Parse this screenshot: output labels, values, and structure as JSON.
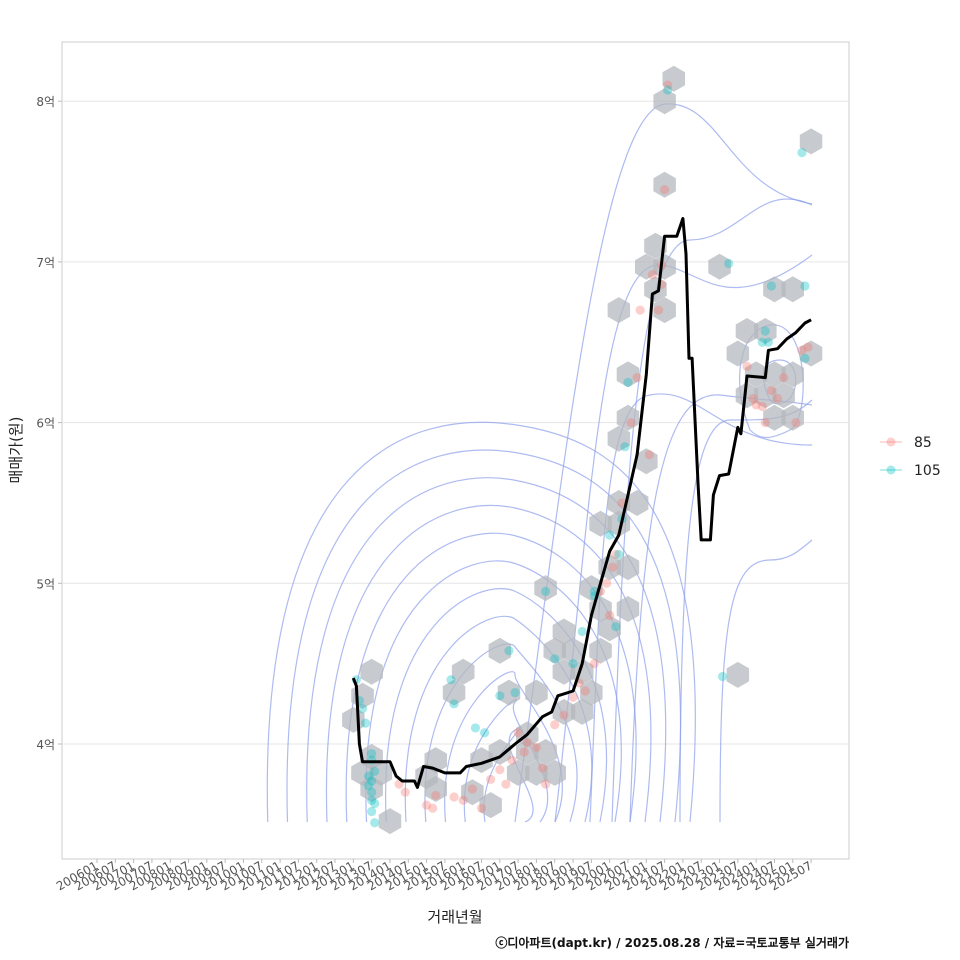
{
  "chart_data": {
    "type": "line",
    "title": "",
    "xlabel": "거래년월",
    "ylabel": "매매가(원)",
    "caption": "ⓒ디아파트(dapt.kr) / 2025.08.28 / 자료=국토교통부 실거래가",
    "x_ticks": [
      "200601",
      "200607",
      "200701",
      "200707",
      "200801",
      "200807",
      "200901",
      "200907",
      "201001",
      "201007",
      "201101",
      "201107",
      "201201",
      "201207",
      "201301",
      "201307",
      "201401",
      "201407",
      "201501",
      "201507",
      "201601",
      "201607",
      "201701",
      "201707",
      "201801",
      "201807",
      "201901",
      "201907",
      "202001",
      "202007",
      "202101",
      "202107",
      "202201",
      "202207",
      "202301",
      "202307",
      "202401",
      "202407",
      "202501",
      "202507"
    ],
    "y_ticks": [
      {
        "value": 4,
        "label": "4억"
      },
      {
        "value": 5,
        "label": "5억"
      },
      {
        "value": 6,
        "label": "6억"
      },
      {
        "value": 7,
        "label": "7억"
      },
      {
        "value": 8,
        "label": "8억"
      }
    ],
    "ylim": [
      3.3,
      8.4
    ],
    "grid": true,
    "legend": {
      "position": "right",
      "entries": [
        {
          "label": "85",
          "color": "#F8766D"
        },
        {
          "label": "105",
          "color": "#00BFC4"
        }
      ]
    },
    "colors": {
      "line": "#000000",
      "contour": "#8C9EEB",
      "hex": "#B4B8BE",
      "series_85": "#F8766D",
      "series_105": "#00BFC4",
      "grid": "#E6E6E6",
      "panel_border": "#CCCCCC"
    },
    "moving_average": [
      {
        "x": "2013-01",
        "y": 4.41
      },
      {
        "x": "2013-02",
        "y": 4.36
      },
      {
        "x": "2013-03",
        "y": 4.0
      },
      {
        "x": "2013-04",
        "y": 3.89
      },
      {
        "x": "2013-07",
        "y": 3.89
      },
      {
        "x": "2014-01",
        "y": 3.89
      },
      {
        "x": "2014-03",
        "y": 3.8
      },
      {
        "x": "2014-05",
        "y": 3.77
      },
      {
        "x": "2014-09",
        "y": 3.77
      },
      {
        "x": "2014-10",
        "y": 3.73
      },
      {
        "x": "2014-12",
        "y": 3.86
      },
      {
        "x": "2015-03",
        "y": 3.85
      },
      {
        "x": "2015-07",
        "y": 3.82
      },
      {
        "x": "2015-12",
        "y": 3.82
      },
      {
        "x": "2016-02",
        "y": 3.86
      },
      {
        "x": "2016-07",
        "y": 3.88
      },
      {
        "x": "2017-01",
        "y": 3.92
      },
      {
        "x": "2017-06",
        "y": 4.0
      },
      {
        "x": "2017-10",
        "y": 4.06
      },
      {
        "x": "2018-03",
        "y": 4.17
      },
      {
        "x": "2018-06",
        "y": 4.2
      },
      {
        "x": "2018-08",
        "y": 4.3
      },
      {
        "x": "2019-01",
        "y": 4.33
      },
      {
        "x": "2019-04",
        "y": 4.5
      },
      {
        "x": "2019-07",
        "y": 4.8
      },
      {
        "x": "2019-10",
        "y": 5.0
      },
      {
        "x": "2020-01",
        "y": 5.2
      },
      {
        "x": "2020-04",
        "y": 5.3
      },
      {
        "x": "2020-07",
        "y": 5.55
      },
      {
        "x": "2020-10",
        "y": 5.8
      },
      {
        "x": "2021-01",
        "y": 6.3
      },
      {
        "x": "2021-03",
        "y": 6.8
      },
      {
        "x": "2021-05",
        "y": 6.82
      },
      {
        "x": "2021-07",
        "y": 7.16
      },
      {
        "x": "2021-11",
        "y": 7.16
      },
      {
        "x": "2022-01",
        "y": 7.27
      },
      {
        "x": "2022-02",
        "y": 7.05
      },
      {
        "x": "2022-03",
        "y": 6.4
      },
      {
        "x": "2022-04",
        "y": 6.4
      },
      {
        "x": "2022-06",
        "y": 5.6
      },
      {
        "x": "2022-07",
        "y": 5.27
      },
      {
        "x": "2022-10",
        "y": 5.27
      },
      {
        "x": "2022-11",
        "y": 5.55
      },
      {
        "x": "2023-01",
        "y": 5.67
      },
      {
        "x": "2023-04",
        "y": 5.68
      },
      {
        "x": "2023-07",
        "y": 5.97
      },
      {
        "x": "2023-08",
        "y": 5.93
      },
      {
        "x": "2023-10",
        "y": 6.29
      },
      {
        "x": "2024-04",
        "y": 6.28
      },
      {
        "x": "2024-05",
        "y": 6.45
      },
      {
        "x": "2024-08",
        "y": 6.46
      },
      {
        "x": "2024-11",
        "y": 6.52
      },
      {
        "x": "2025-02",
        "y": 6.56
      },
      {
        "x": "2025-05",
        "y": 6.62
      },
      {
        "x": "2025-07",
        "y": 6.64
      }
    ],
    "points_85": [
      {
        "x": "2014-04",
        "y": 3.75
      },
      {
        "x": "2014-06",
        "y": 3.7
      },
      {
        "x": "2015-01",
        "y": 3.62
      },
      {
        "x": "2015-03",
        "y": 3.6
      },
      {
        "x": "2015-04",
        "y": 3.68
      },
      {
        "x": "2015-10",
        "y": 3.67
      },
      {
        "x": "2016-01",
        "y": 3.65
      },
      {
        "x": "2016-04",
        "y": 3.72
      },
      {
        "x": "2016-07",
        "y": 3.6
      },
      {
        "x": "2016-10",
        "y": 3.78
      },
      {
        "x": "2017-01",
        "y": 3.84
      },
      {
        "x": "2017-03",
        "y": 3.75
      },
      {
        "x": "2017-05",
        "y": 3.9
      },
      {
        "x": "2017-07",
        "y": 4.07
      },
      {
        "x": "2017-09",
        "y": 3.95
      },
      {
        "x": "2017-10",
        "y": 4.01
      },
      {
        "x": "2018-01",
        "y": 3.98
      },
      {
        "x": "2018-03",
        "y": 3.85
      },
      {
        "x": "2018-04",
        "y": 3.75
      },
      {
        "x": "2018-07",
        "y": 4.12
      },
      {
        "x": "2018-10",
        "y": 4.18
      },
      {
        "x": "2019-01",
        "y": 4.29
      },
      {
        "x": "2019-03",
        "y": 4.38
      },
      {
        "x": "2019-05",
        "y": 4.33
      },
      {
        "x": "2019-08",
        "y": 4.5
      },
      {
        "x": "2019-10",
        "y": 4.95
      },
      {
        "x": "2019-12",
        "y": 5.0
      },
      {
        "x": "2020-01",
        "y": 4.8
      },
      {
        "x": "2020-02",
        "y": 5.1
      },
      {
        "x": "2020-03",
        "y": 5.18
      },
      {
        "x": "2020-05",
        "y": 5.5
      },
      {
        "x": "2020-08",
        "y": 6.0
      },
      {
        "x": "2020-10",
        "y": 6.28
      },
      {
        "x": "2020-11",
        "y": 6.7
      },
      {
        "x": "2021-02",
        "y": 5.8
      },
      {
        "x": "2021-03",
        "y": 6.92
      },
      {
        "x": "2021-05",
        "y": 6.7
      },
      {
        "x": "2021-06",
        "y": 6.86
      },
      {
        "x": "2021-06",
        "y": 6.98
      },
      {
        "x": "2021-07",
        "y": 7.45
      },
      {
        "x": "2021-08",
        "y": 8.1
      },
      {
        "x": "2023-10",
        "y": 6.35
      },
      {
        "x": "2023-12",
        "y": 6.15
      },
      {
        "x": "2024-01",
        "y": 6.11
      },
      {
        "x": "2024-03",
        "y": 6.1
      },
      {
        "x": "2024-04",
        "y": 6.0
      },
      {
        "x": "2024-06",
        "y": 6.2
      },
      {
        "x": "2024-08",
        "y": 6.15
      },
      {
        "x": "2024-10",
        "y": 6.28
      },
      {
        "x": "2025-02",
        "y": 6.0
      },
      {
        "x": "2025-04",
        "y": 6.45
      },
      {
        "x": "2025-06",
        "y": 6.47
      }
    ],
    "points_105": [
      {
        "x": "2013-02",
        "y": 4.4
      },
      {
        "x": "2013-03",
        "y": 4.27
      },
      {
        "x": "2013-04",
        "y": 4.22
      },
      {
        "x": "2013-05",
        "y": 4.13
      },
      {
        "x": "2013-07",
        "y": 3.94
      },
      {
        "x": "2013-07",
        "y": 3.9
      },
      {
        "x": "2013-08",
        "y": 3.83
      },
      {
        "x": "2013-06",
        "y": 3.8
      },
      {
        "x": "2013-07",
        "y": 3.77
      },
      {
        "x": "2013-06",
        "y": 3.74
      },
      {
        "x": "2013-07",
        "y": 3.7
      },
      {
        "x": "2013-07",
        "y": 3.65
      },
      {
        "x": "2013-08",
        "y": 3.63
      },
      {
        "x": "2013-07",
        "y": 3.58
      },
      {
        "x": "2013-08",
        "y": 3.51
      },
      {
        "x": "2015-09",
        "y": 4.4
      },
      {
        "x": "2015-10",
        "y": 4.25
      },
      {
        "x": "2016-05",
        "y": 4.1
      },
      {
        "x": "2016-08",
        "y": 4.07
      },
      {
        "x": "2017-01",
        "y": 4.3
      },
      {
        "x": "2017-04",
        "y": 4.58
      },
      {
        "x": "2017-06",
        "y": 4.32
      },
      {
        "x": "2018-07",
        "y": 4.53
      },
      {
        "x": "2018-04",
        "y": 4.95
      },
      {
        "x": "2019-01",
        "y": 4.5
      },
      {
        "x": "2019-04",
        "y": 4.7
      },
      {
        "x": "2019-08",
        "y": 4.92
      },
      {
        "x": "2019-08",
        "y": 4.95
      },
      {
        "x": "2020-03",
        "y": 4.73
      },
      {
        "x": "2020-01",
        "y": 5.3
      },
      {
        "x": "2020-04",
        "y": 5.18
      },
      {
        "x": "2020-05",
        "y": 5.4
      },
      {
        "x": "2020-06",
        "y": 5.85
      },
      {
        "x": "2020-07",
        "y": 6.25
      },
      {
        "x": "2021-08",
        "y": 8.07
      },
      {
        "x": "2023-04",
        "y": 6.99
      },
      {
        "x": "2023-02",
        "y": 4.42
      },
      {
        "x": "2024-04",
        "y": 6.57
      },
      {
        "x": "2024-03",
        "y": 6.5
      },
      {
        "x": "2024-05",
        "y": 6.5
      },
      {
        "x": "2024-06",
        "y": 6.85
      },
      {
        "x": "2025-05",
        "y": 6.85
      },
      {
        "x": "2025-05",
        "y": 6.4
      },
      {
        "x": "2025-04",
        "y": 7.68
      }
    ],
    "hexbins": [
      {
        "x": "2013-04",
        "y": 4.3
      },
      {
        "x": "2013-07",
        "y": 4.45
      },
      {
        "x": "2013-01",
        "y": 4.15
      },
      {
        "x": "2013-07",
        "y": 3.92
      },
      {
        "x": "2013-04",
        "y": 3.82
      },
      {
        "x": "2013-10",
        "y": 3.82
      },
      {
        "x": "2013-07",
        "y": 3.72
      },
      {
        "x": "2014-01",
        "y": 3.52
      },
      {
        "x": "2015-04",
        "y": 3.9
      },
      {
        "x": "2015-01",
        "y": 3.8
      },
      {
        "x": "2015-04",
        "y": 3.72
      },
      {
        "x": "2015-10",
        "y": 4.32
      },
      {
        "x": "2016-01",
        "y": 4.45
      },
      {
        "x": "2016-07",
        "y": 3.9
      },
      {
        "x": "2016-04",
        "y": 3.7
      },
      {
        "x": "2016-10",
        "y": 3.62
      },
      {
        "x": "2017-01",
        "y": 4.58
      },
      {
        "x": "2017-01",
        "y": 3.95
      },
      {
        "x": "2017-04",
        "y": 4.32
      },
      {
        "x": "2017-07",
        "y": 3.82
      },
      {
        "x": "2017-10",
        "y": 4.06
      },
      {
        "x": "2017-10",
        "y": 3.95
      },
      {
        "x": "2018-01",
        "y": 4.32
      },
      {
        "x": "2018-01",
        "y": 3.82
      },
      {
        "x": "2018-04",
        "y": 4.97
      },
      {
        "x": "2018-07",
        "y": 4.58
      },
      {
        "x": "2018-04",
        "y": 3.95
      },
      {
        "x": "2018-07",
        "y": 3.82
      },
      {
        "x": "2018-10",
        "y": 4.7
      },
      {
        "x": "2018-10",
        "y": 4.45
      },
      {
        "x": "2018-10",
        "y": 4.2
      },
      {
        "x": "2019-01",
        "y": 4.58
      },
      {
        "x": "2019-04",
        "y": 4.45
      },
      {
        "x": "2019-04",
        "y": 4.2
      },
      {
        "x": "2019-07",
        "y": 4.97
      },
      {
        "x": "2019-07",
        "y": 4.32
      },
      {
        "x": "2019-10",
        "y": 4.58
      },
      {
        "x": "2019-10",
        "y": 4.84
      },
      {
        "x": "2020-01",
        "y": 5.1
      },
      {
        "x": "2020-01",
        "y": 4.72
      },
      {
        "x": "2019-10",
        "y": 5.37
      },
      {
        "x": "2020-04",
        "y": 5.5
      },
      {
        "x": "2020-04",
        "y": 5.37
      },
      {
        "x": "2020-07",
        "y": 4.84
      },
      {
        "x": "2020-07",
        "y": 5.1
      },
      {
        "x": "2020-04",
        "y": 5.9
      },
      {
        "x": "2020-07",
        "y": 6.03
      },
      {
        "x": "2020-07",
        "y": 6.3
      },
      {
        "x": "2020-10",
        "y": 5.5
      },
      {
        "x": "2020-04",
        "y": 6.7
      },
      {
        "x": "2021-01",
        "y": 5.76
      },
      {
        "x": "2021-01",
        "y": 6.97
      },
      {
        "x": "2021-04",
        "y": 6.83
      },
      {
        "x": "2021-04",
        "y": 7.1
      },
      {
        "x": "2021-07",
        "y": 6.97
      },
      {
        "x": "2021-07",
        "y": 6.7
      },
      {
        "x": "2021-07",
        "y": 7.48
      },
      {
        "x": "2021-07",
        "y": 8.0
      },
      {
        "x": "2021-10",
        "y": 8.14
      },
      {
        "x": "2023-01",
        "y": 6.97
      },
      {
        "x": "2023-07",
        "y": 4.43
      },
      {
        "x": "2023-07",
        "y": 6.43
      },
      {
        "x": "2023-10",
        "y": 6.57
      },
      {
        "x": "2023-10",
        "y": 6.17
      },
      {
        "x": "2024-01",
        "y": 6.3
      },
      {
        "x": "2024-04",
        "y": 6.57
      },
      {
        "x": "2024-04",
        "y": 6.17
      },
      {
        "x": "2024-07",
        "y": 6.83
      },
      {
        "x": "2024-07",
        "y": 6.3
      },
      {
        "x": "2024-07",
        "y": 6.03
      },
      {
        "x": "2024-10",
        "y": 6.17
      },
      {
        "x": "2025-01",
        "y": 6.83
      },
      {
        "x": "2025-01",
        "y": 6.3
      },
      {
        "x": "2025-01",
        "y": 6.03
      },
      {
        "x": "2025-07",
        "y": 6.43
      },
      {
        "x": "2025-07",
        "y": 7.75
      }
    ]
  }
}
